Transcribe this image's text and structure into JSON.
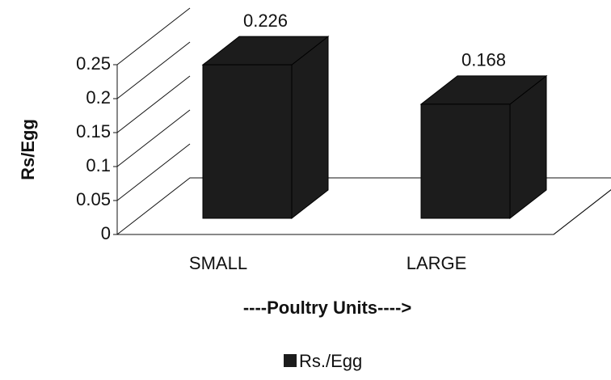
{
  "chart_data": {
    "type": "bar3d",
    "categories": [
      "SMALL",
      "LARGE"
    ],
    "series": [
      {
        "name": "Rs./Egg",
        "color": "#1c1c1c",
        "values": [
          0.226,
          0.168
        ]
      }
    ],
    "ylim": [
      0,
      0.25
    ],
    "yticks": [
      0,
      0.05,
      0.1,
      0.15,
      0.2,
      0.25
    ],
    "ylabel": "Rs/Egg",
    "xlabel": "----Poultry Units---->",
    "grid": true,
    "legend": "bottom"
  }
}
